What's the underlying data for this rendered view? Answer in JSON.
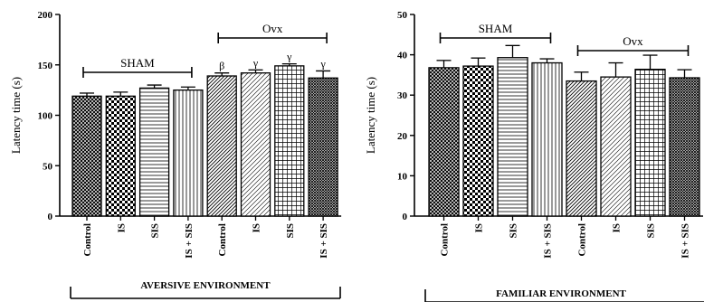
{
  "patterns": {
    "Control": "dense-crosshatch",
    "IS": "checker",
    "SIS": "horizontal-lines",
    "IS + SIS": "vertical-lines",
    "OvxControl": "diagonal-lines",
    "OvxIS": "light-diagonal",
    "OvxSIS": "grid",
    "OvxIS + SIS": "dotted-crosshatch"
  },
  "chart_data": [
    {
      "type": "bar",
      "ylabel": "Latency time (s)",
      "ylim": [
        0,
        200
      ],
      "yticks": [
        0,
        50,
        100,
        150,
        200
      ],
      "categories": [
        "Control",
        "IS",
        "SIS",
        "IS + SIS",
        "Control",
        "IS",
        "SIS",
        "IS + SIS"
      ],
      "groups": [
        {
          "label": "SHAM",
          "start": 0,
          "end": 3
        },
        {
          "label": "Ovx",
          "start": 4,
          "end": 7
        }
      ],
      "values": [
        119,
        119,
        127,
        125,
        139,
        142,
        149,
        137
      ],
      "errors": [
        3,
        4,
        3,
        3,
        3,
        3,
        2,
        7
      ],
      "annotations": [
        "",
        "",
        "",
        "",
        "β",
        "γ",
        "γ",
        "γ"
      ],
      "xlabel": "AVERSIVE ENVIRONMENT",
      "grid": false
    },
    {
      "type": "bar",
      "ylabel": "Latency time (s)",
      "ylim": [
        0,
        50
      ],
      "yticks": [
        0,
        10,
        20,
        30,
        40,
        50
      ],
      "categories": [
        "Control",
        "IS",
        "SIS",
        "IS + SIS",
        "Control",
        "IS",
        "SIS",
        "IS + SIS"
      ],
      "groups": [
        {
          "label": "SHAM",
          "start": 0,
          "end": 3
        },
        {
          "label": "Ovx",
          "start": 4,
          "end": 7
        }
      ],
      "values": [
        36.8,
        37.2,
        39.3,
        38.0,
        33.5,
        34.5,
        36.4,
        34.3
      ],
      "errors": [
        1.8,
        2.0,
        3.0,
        1.0,
        2.2,
        3.5,
        3.5,
        2.0
      ],
      "annotations": [
        "",
        "",
        "",
        "",
        "",
        "",
        "",
        ""
      ],
      "xlabel": "FAMILIAR ENVIRONMENT",
      "grid": false
    }
  ]
}
